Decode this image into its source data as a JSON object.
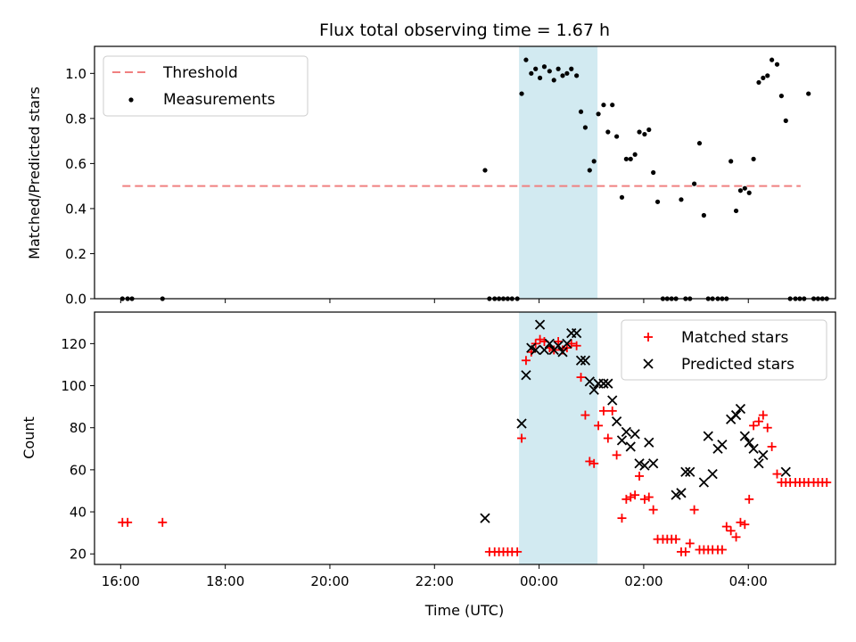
{
  "chart_data": [
    {
      "type": "scatter",
      "title": "Flux total observing time = 1.67 h",
      "ylabel": "Matched/Predicted stars",
      "xlabel": "",
      "xlim": [
        "15:30",
        "05:40"
      ],
      "ylim": [
        0,
        1.12
      ],
      "yticks": [
        0.0,
        0.2,
        0.4,
        0.6,
        0.8,
        1.0
      ],
      "ytick_labels": [
        "0.0",
        "0.2",
        "0.4",
        "0.6",
        "0.8",
        "1.0"
      ],
      "grid": false,
      "legend_position": "upper-left",
      "highlight_span": {
        "x": [
          "23:37",
          "01:07"
        ],
        "color": "#add8e6"
      },
      "threshold": {
        "name": "Threshold",
        "y": 0.5,
        "x": [
          "16:02",
          "05:00"
        ],
        "color": "#f08080"
      },
      "series": [
        {
          "name": "Measurements",
          "marker": "dot",
          "color": "#000000",
          "points": [
            [
              "16:02",
              0
            ],
            [
              "16:08",
              0
            ],
            [
              "16:13",
              0
            ],
            [
              "16:48",
              0
            ],
            [
              "22:58",
              0.57
            ],
            [
              "23:03",
              0
            ],
            [
              "23:09",
              0
            ],
            [
              "23:14",
              0
            ],
            [
              "23:19",
              0
            ],
            [
              "23:24",
              0
            ],
            [
              "23:29",
              0
            ],
            [
              "23:35",
              0
            ],
            [
              "23:40",
              0.91
            ],
            [
              "23:45",
              1.06
            ],
            [
              "23:51",
              1.0
            ],
            [
              "23:56",
              1.02
            ],
            [
              "00:01",
              0.98
            ],
            [
              "00:06",
              1.03
            ],
            [
              "00:12",
              1.01
            ],
            [
              "00:17",
              0.97
            ],
            [
              "00:22",
              1.02
            ],
            [
              "00:27",
              0.99
            ],
            [
              "00:32",
              1.0
            ],
            [
              "00:37",
              1.02
            ],
            [
              "00:43",
              0.99
            ],
            [
              "00:48",
              0.83
            ],
            [
              "00:53",
              0.76
            ],
            [
              "00:58",
              0.57
            ],
            [
              "01:03",
              0.61
            ],
            [
              "01:08",
              0.82
            ],
            [
              "01:14",
              0.86
            ],
            [
              "01:19",
              0.74
            ],
            [
              "01:24",
              0.86
            ],
            [
              "01:29",
              0.72
            ],
            [
              "01:35",
              0.45
            ],
            [
              "01:40",
              0.62
            ],
            [
              "01:45",
              0.62
            ],
            [
              "01:50",
              0.64
            ],
            [
              "01:55",
              0.74
            ],
            [
              "02:01",
              0.73
            ],
            [
              "02:06",
              0.75
            ],
            [
              "02:11",
              0.56
            ],
            [
              "02:16",
              0.43
            ],
            [
              "02:22",
              0
            ],
            [
              "02:27",
              0
            ],
            [
              "02:32",
              0
            ],
            [
              "02:37",
              0
            ],
            [
              "02:43",
              0.44
            ],
            [
              "02:48",
              0
            ],
            [
              "02:53",
              0
            ],
            [
              "02:58",
              0.51
            ],
            [
              "03:04",
              0.69
            ],
            [
              "03:09",
              0.37
            ],
            [
              "03:14",
              0
            ],
            [
              "03:19",
              0
            ],
            [
              "03:25",
              0
            ],
            [
              "03:30",
              0
            ],
            [
              "03:35",
              0
            ],
            [
              "03:40",
              0.61
            ],
            [
              "03:46",
              0.39
            ],
            [
              "03:51",
              0.48
            ],
            [
              "03:56",
              0.49
            ],
            [
              "04:01",
              0.47
            ],
            [
              "04:06",
              0.62
            ],
            [
              "04:12",
              0.96
            ],
            [
              "04:17",
              0.98
            ],
            [
              "04:22",
              0.99
            ],
            [
              "04:27",
              1.06
            ],
            [
              "04:33",
              1.04
            ],
            [
              "04:38",
              0.9
            ],
            [
              "04:43",
              0.79
            ],
            [
              "04:48",
              0
            ],
            [
              "04:54",
              0
            ],
            [
              "04:59",
              0
            ],
            [
              "05:04",
              0
            ],
            [
              "05:09",
              0.91
            ],
            [
              "05:15",
              0
            ],
            [
              "05:20",
              0
            ],
            [
              "05:25",
              0
            ],
            [
              "05:30",
              0
            ]
          ]
        }
      ]
    },
    {
      "type": "scatter",
      "title": "",
      "xlabel": "Time (UTC)",
      "ylabel": "Count",
      "xlim": [
        "15:30",
        "05:40"
      ],
      "ylim": [
        15,
        135
      ],
      "yticks": [
        20,
        40,
        60,
        80,
        100,
        120
      ],
      "ytick_labels": [
        "20",
        "40",
        "60",
        "80",
        "100",
        "120"
      ],
      "xticks": [
        "16:00",
        "18:00",
        "20:00",
        "22:00",
        "00:00",
        "02:00",
        "04:00"
      ],
      "xtick_labels": [
        "16:00",
        "18:00",
        "20:00",
        "22:00",
        "00:00",
        "02:00",
        "04:00"
      ],
      "grid": false,
      "legend_position": "upper-right",
      "highlight_span": {
        "x": [
          "23:37",
          "01:07"
        ],
        "color": "#add8e6"
      },
      "series": [
        {
          "name": "Matched stars",
          "marker": "plus",
          "color": "#ff0000",
          "points": [
            [
              "16:02",
              35
            ],
            [
              "16:08",
              35
            ],
            [
              "16:48",
              35
            ],
            [
              "23:03",
              21
            ],
            [
              "23:09",
              21
            ],
            [
              "23:14",
              21
            ],
            [
              "23:19",
              21
            ],
            [
              "23:24",
              21
            ],
            [
              "23:29",
              21
            ],
            [
              "23:35",
              21
            ],
            [
              "23:40",
              75
            ],
            [
              "23:45",
              112
            ],
            [
              "23:51",
              116
            ],
            [
              "23:56",
              120
            ],
            [
              "00:01",
              122
            ],
            [
              "00:06",
              121
            ],
            [
              "00:12",
              118
            ],
            [
              "00:17",
              117
            ],
            [
              "00:22",
              121
            ],
            [
              "00:27",
              117
            ],
            [
              "00:32",
              118
            ],
            [
              "00:37",
              120
            ],
            [
              "00:43",
              119
            ],
            [
              "00:48",
              104
            ],
            [
              "00:53",
              86
            ],
            [
              "00:58",
              64
            ],
            [
              "01:03",
              63
            ],
            [
              "01:08",
              81
            ],
            [
              "01:14",
              88
            ],
            [
              "01:19",
              75
            ],
            [
              "01:24",
              88
            ],
            [
              "01:29",
              67
            ],
            [
              "01:35",
              37
            ],
            [
              "01:40",
              46
            ],
            [
              "01:45",
              47
            ],
            [
              "01:50",
              48
            ],
            [
              "01:55",
              57
            ],
            [
              "02:01",
              46
            ],
            [
              "02:06",
              47
            ],
            [
              "02:11",
              41
            ],
            [
              "02:16",
              27
            ],
            [
              "02:22",
              27
            ],
            [
              "02:27",
              27
            ],
            [
              "02:32",
              27
            ],
            [
              "02:37",
              27
            ],
            [
              "02:43",
              21
            ],
            [
              "02:48",
              21
            ],
            [
              "02:53",
              25
            ],
            [
              "02:58",
              41
            ],
            [
              "03:04",
              22
            ],
            [
              "03:09",
              22
            ],
            [
              "03:14",
              22
            ],
            [
              "03:19",
              22
            ],
            [
              "03:25",
              22
            ],
            [
              "03:30",
              22
            ],
            [
              "03:35",
              33
            ],
            [
              "03:40",
              31
            ],
            [
              "03:46",
              28
            ],
            [
              "03:51",
              35
            ],
            [
              "03:56",
              34
            ],
            [
              "04:01",
              46
            ],
            [
              "04:06",
              81
            ],
            [
              "04:12",
              83
            ],
            [
              "04:17",
              86
            ],
            [
              "04:22",
              80
            ],
            [
              "04:27",
              71
            ],
            [
              "04:33",
              58
            ],
            [
              "04:38",
              54
            ],
            [
              "04:43",
              54
            ],
            [
              "04:48",
              54
            ],
            [
              "04:54",
              54
            ],
            [
              "04:59",
              54
            ],
            [
              "05:04",
              54
            ],
            [
              "05:09",
              54
            ],
            [
              "05:15",
              54
            ],
            [
              "05:20",
              54
            ],
            [
              "05:25",
              54
            ],
            [
              "05:30",
              54
            ]
          ]
        },
        {
          "name": "Predicted stars",
          "marker": "x",
          "color": "#000000",
          "points": [
            [
              "22:58",
              37
            ],
            [
              "23:40",
              82
            ],
            [
              "23:45",
              105
            ],
            [
              "23:51",
              118
            ],
            [
              "23:56",
              117
            ],
            [
              "00:01",
              129
            ],
            [
              "00:06",
              117
            ],
            [
              "00:12",
              120
            ],
            [
              "00:17",
              117
            ],
            [
              "00:22",
              119
            ],
            [
              "00:27",
              116
            ],
            [
              "00:32",
              120
            ],
            [
              "00:37",
              125
            ],
            [
              "00:43",
              125
            ],
            [
              "00:48",
              112
            ],
            [
              "00:53",
              112
            ],
            [
              "00:58",
              102
            ],
            [
              "01:03",
              98
            ],
            [
              "01:08",
              101
            ],
            [
              "01:14",
              101
            ],
            [
              "01:19",
              101
            ],
            [
              "01:24",
              93
            ],
            [
              "01:29",
              83
            ],
            [
              "01:35",
              74
            ],
            [
              "01:40",
              78
            ],
            [
              "01:45",
              71
            ],
            [
              "01:50",
              77
            ],
            [
              "01:55",
              63
            ],
            [
              "02:01",
              62
            ],
            [
              "02:06",
              73
            ],
            [
              "02:11",
              63
            ],
            [
              "02:37",
              48
            ],
            [
              "02:43",
              49
            ],
            [
              "02:48",
              59
            ],
            [
              "02:53",
              59
            ],
            [
              "03:09",
              54
            ],
            [
              "03:14",
              76
            ],
            [
              "03:19",
              58
            ],
            [
              "03:25",
              70
            ],
            [
              "03:30",
              72
            ],
            [
              "03:40",
              84
            ],
            [
              "03:46",
              86
            ],
            [
              "03:51",
              89
            ],
            [
              "03:56",
              76
            ],
            [
              "04:01",
              73
            ],
            [
              "04:06",
              70
            ],
            [
              "04:12",
              63
            ],
            [
              "04:17",
              67
            ],
            [
              "04:43",
              59
            ]
          ]
        }
      ]
    }
  ]
}
